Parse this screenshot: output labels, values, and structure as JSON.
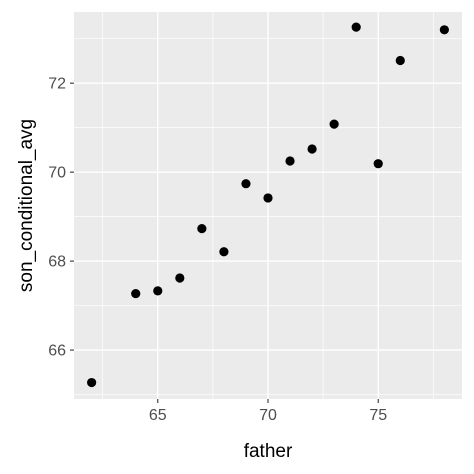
{
  "chart_data": {
    "type": "scatter",
    "xlabel": "father",
    "ylabel": "son_conditional_avg",
    "xlim": [
      61.2,
      78.8
    ],
    "ylim": [
      64.9,
      73.6
    ],
    "x_ticks": [
      65,
      70,
      75
    ],
    "x_tick_labels": [
      "65",
      "70",
      "75"
    ],
    "y_ticks": [
      66,
      68,
      70,
      72
    ],
    "y_tick_labels": [
      "66",
      "68",
      "70",
      "72"
    ],
    "grid": true,
    "points": [
      {
        "x": 62,
        "y": 65.27
      },
      {
        "x": 64,
        "y": 67.27
      },
      {
        "x": 65,
        "y": 67.33
      },
      {
        "x": 66,
        "y": 67.62
      },
      {
        "x": 67,
        "y": 68.73
      },
      {
        "x": 68,
        "y": 68.21
      },
      {
        "x": 69,
        "y": 69.74
      },
      {
        "x": 70,
        "y": 69.42
      },
      {
        "x": 71,
        "y": 70.25
      },
      {
        "x": 72,
        "y": 70.52
      },
      {
        "x": 73,
        "y": 71.08
      },
      {
        "x": 74,
        "y": 73.26
      },
      {
        "x": 75,
        "y": 70.19
      },
      {
        "x": 76,
        "y": 72.51
      },
      {
        "x": 78,
        "y": 73.2
      }
    ],
    "colors": {
      "panel": "#ebebeb",
      "grid_major": "#ffffff",
      "point": "#000000"
    }
  }
}
